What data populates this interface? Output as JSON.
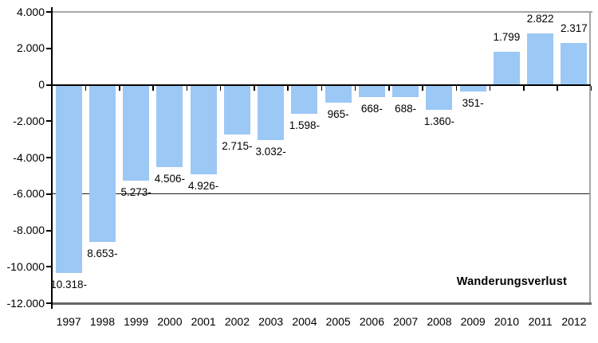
{
  "chart_data": {
    "type": "bar",
    "title": "",
    "xlabel": "",
    "ylabel": "",
    "categories": [
      "1997",
      "1998",
      "1999",
      "2000",
      "2001",
      "2002",
      "2003",
      "2004",
      "2005",
      "2006",
      "2007",
      "2008",
      "2009",
      "2010",
      "2011",
      "2012"
    ],
    "values": [
      -10318,
      -8653,
      -5273,
      -4506,
      -4926,
      -2715,
      -3032,
      -1598,
      -965,
      -668,
      -688,
      -1360,
      -351,
      1799,
      2822,
      2317
    ],
    "bar_labels": [
      "10.318-",
      "8.653-",
      "5.273-",
      "4.506-",
      "4.926-",
      "2.715-",
      "3.032-",
      "1.598-",
      "965-",
      "668-",
      "688-",
      "1.360-",
      "351-",
      "1.799",
      "2.822",
      "2.317"
    ],
    "y_tick_labels": [
      "4.000",
      "2.000",
      "0",
      "-2.000",
      "-4.000",
      "-6.000",
      "-8.000",
      "-10.000",
      "-12.000"
    ],
    "y_tick_values": [
      4000,
      2000,
      0,
      -2000,
      -4000,
      -6000,
      -8000,
      -10000,
      -12000
    ],
    "ylim": [
      -12000,
      4000
    ],
    "gridlines": [
      -6000
    ],
    "grid": "single-line-at--6000",
    "legend_position": "none",
    "annotation": "Wanderungsverlust",
    "colors": {
      "bar": "#9CC8F5",
      "axis": "#000000",
      "frame": "#A6A6A6",
      "baseline": "#666666",
      "gridline": "#1F1F1F",
      "background": "#FFFFFF"
    }
  }
}
